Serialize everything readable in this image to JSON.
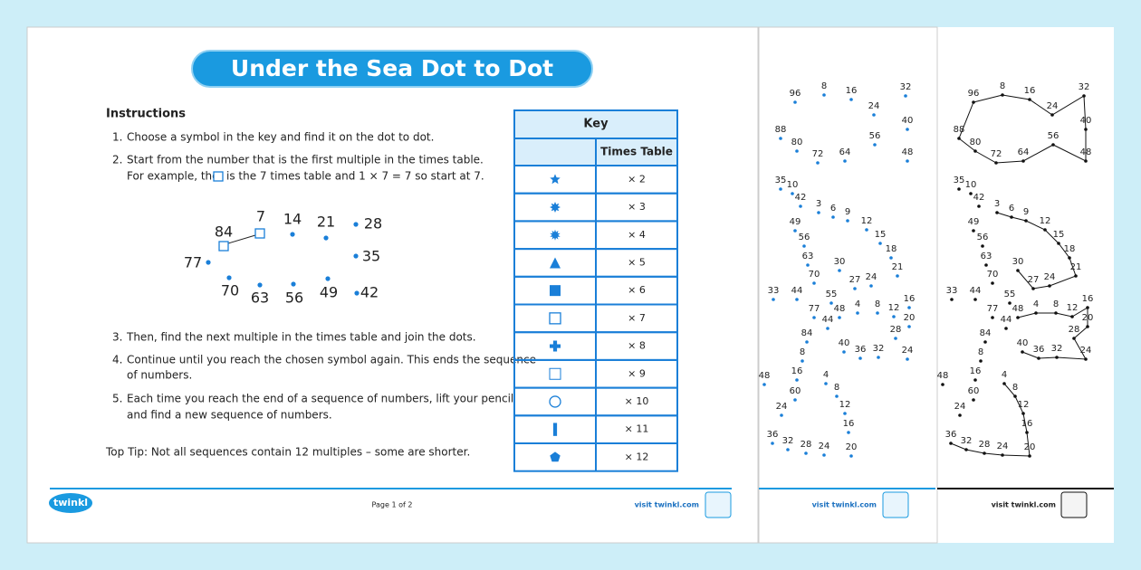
{
  "title": "Under the Sea Dot to Dot",
  "instructions": {
    "heading": "Instructions",
    "steps": [
      {
        "number": "1.",
        "lines": [
          "Choose a symbol in the key and find it on the dot to dot."
        ]
      },
      {
        "number": "2.",
        "lines": [
          "Start from the number that is the first multiple in the times table.",
          "For example, the"
        ],
        "after_symbol": "is the 7 times table and 1 × 7 = 7 so start at 7."
      },
      {
        "number": "3.",
        "lines": [
          "Then, find the next multiple in the times table and join the dots."
        ]
      },
      {
        "number": "4.",
        "lines": [
          "Continue until you reach the chosen symbol again. This ends the sequence",
          "of numbers."
        ]
      },
      {
        "number": "5.",
        "lines": [
          "Each time you reach the end of a sequence of numbers, lift your pencil",
          "and find a new sequence of numbers."
        ]
      }
    ],
    "tip": "Top Tip: Not all sequences contain 12 multiples – some are shorter."
  },
  "example": {
    "dots": [
      "84",
      "7",
      "14",
      "21",
      "28",
      "35",
      "42",
      "49",
      "56",
      "63",
      "70",
      "77"
    ]
  },
  "key": {
    "title": "Key",
    "column_header": "Times Table",
    "rows": [
      "× 2",
      "× 3",
      "× 4",
      "× 5",
      "× 6",
      "× 7",
      "× 8",
      "× 9",
      "× 10",
      "× 11",
      "× 12"
    ]
  },
  "footer": {
    "logo": "twinkl",
    "page": "Page 1 of 2",
    "site": "visit twinkl.com"
  },
  "page2": {
    "site": "visit twinkl.com",
    "dots": [
      "96",
      "8",
      "16",
      "32",
      "24",
      "40",
      "88",
      "80",
      "72",
      "64",
      "56",
      "48",
      "35",
      "10",
      "42",
      "3",
      "6",
      "9",
      "49",
      "12",
      "56",
      "15",
      "18",
      "63",
      "30",
      "21",
      "70",
      "27",
      "24",
      "33",
      "44",
      "55",
      "48",
      "4",
      "8",
      "12",
      "16",
      "20",
      "77",
      "44",
      "84",
      "28",
      "40",
      "36",
      "32",
      "24",
      "8",
      "16",
      "4",
      "48",
      "60",
      "8",
      "12",
      "24",
      "16",
      "36",
      "32",
      "28",
      "24",
      "20"
    ]
  },
  "page3": {
    "site": "visit twinkl.com",
    "dots": [
      "96",
      "8",
      "16",
      "32",
      "24",
      "40",
      "88",
      "80",
      "72",
      "64",
      "56",
      "48",
      "35",
      "10",
      "42",
      "3",
      "6",
      "9",
      "49",
      "12",
      "56",
      "15",
      "18",
      "63",
      "30",
      "21",
      "70",
      "27",
      "24",
      "33",
      "44",
      "55",
      "48",
      "4",
      "8",
      "12",
      "16",
      "20",
      "77",
      "44",
      "84",
      "28",
      "40",
      "36",
      "32",
      "24",
      "8",
      "16",
      "4",
      "48",
      "60",
      "8",
      "12",
      "24",
      "16",
      "36",
      "32",
      "28",
      "24",
      "20"
    ]
  }
}
